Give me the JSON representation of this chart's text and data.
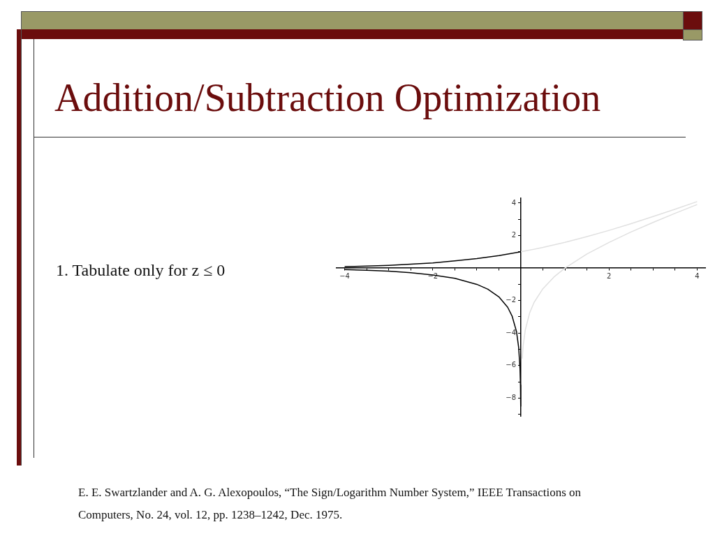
{
  "chart_data": {
    "type": "line",
    "title": "Addition/Subtraction Optimization",
    "annotations": [
      "1.  Tabulate only for z ≤ 0",
      "E. E. Swartzlander and A. G. Alexopoulos, “The Sign/Logarithm Number System,” IEEE Transactions on Computers, No. 24, vol. 12, pp. 1238–1242, Dec. 1975."
    ],
    "series": [
      {
        "color": "#000000",
        "x": [
          -4,
          -3.5,
          -3,
          -2.5,
          -2,
          -1.5,
          -1,
          -0.5,
          0
        ],
        "values": [
          0.09,
          0.12,
          0.17,
          0.24,
          0.32,
          0.45,
          0.58,
          0.77,
          1
        ]
      },
      {
        "color": "#000000",
        "x": [
          -4,
          -3.5,
          -3,
          -2.5,
          -2,
          -1.5,
          -1,
          -0.75,
          -0.5,
          -0.3,
          -0.2,
          -0.1,
          -0.05,
          -0.02,
          -0.01,
          -0.004
        ],
        "values": [
          -0.09,
          -0.13,
          -0.19,
          -0.28,
          -0.42,
          -0.63,
          -1,
          -1.3,
          -1.77,
          -2.41,
          -2.95,
          -3.9,
          -4.9,
          -6.2,
          -7.2,
          -8.5
        ]
      },
      {
        "color": "#e0e0e0",
        "x": [
          0,
          0.5,
          1,
          1.5,
          2,
          2.5,
          3,
          3.5,
          4
        ],
        "values": [
          1,
          1.27,
          1.58,
          1.94,
          2.32,
          2.73,
          3.17,
          3.62,
          4.09
        ]
      },
      {
        "color": "#e0e0e0",
        "x": [
          0.03,
          0.05,
          0.1,
          0.2,
          0.3,
          0.5,
          0.75,
          1,
          1.5,
          2,
          2.5,
          3,
          3.5,
          4
        ],
        "values": [
          -5.57,
          -4.82,
          -3.8,
          -2.75,
          -2.11,
          -1.27,
          -0.55,
          0,
          0.87,
          1.58,
          2.22,
          2.81,
          3.37,
          3.91
        ]
      }
    ],
    "xlim": [
      -4.2,
      4.2
    ],
    "ylim": [
      -9.1,
      4.3
    ],
    "xticks": [
      -4,
      {
        "value": -3.5,
        "label": null
      },
      {
        "value": -3,
        "label": null
      },
      {
        "value": -2.5,
        "label": null
      },
      -2,
      {
        "value": -1.5,
        "label": null
      },
      {
        "value": -1,
        "label": null
      },
      {
        "value": -0.5,
        "label": null
      },
      {
        "value": 0.5,
        "label": null
      },
      {
        "value": 1,
        "label": null
      },
      {
        "value": 1.5,
        "label": null
      },
      2,
      {
        "value": 2.5,
        "label": null
      },
      {
        "value": 3,
        "label": null
      },
      {
        "value": 3.5,
        "label": null
      },
      4
    ],
    "yticks": [
      {
        "value": -9,
        "label": null
      },
      -8,
      {
        "value": -7,
        "label": null
      },
      -6,
      {
        "value": -5,
        "label": null
      },
      -4,
      {
        "value": -3,
        "label": null
      },
      -2,
      {
        "value": -1,
        "label": null
      },
      {
        "value": 1,
        "label": null
      },
      2,
      {
        "value": 3,
        "label": null
      },
      4
    ],
    "grid": false,
    "legend": false,
    "marker": "none",
    "line_style": "solid"
  }
}
